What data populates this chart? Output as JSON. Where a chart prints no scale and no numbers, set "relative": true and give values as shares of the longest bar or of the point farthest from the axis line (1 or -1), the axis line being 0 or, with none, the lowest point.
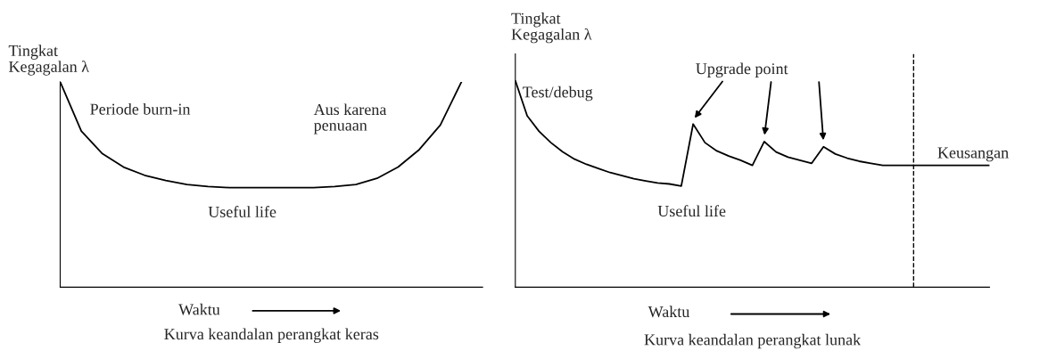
{
  "chart_data": [
    {
      "type": "line",
      "relative": true,
      "title": "Kurva keandalan perangkat keras",
      "xlabel": "Waktu",
      "ylabel": "Tingkat\nKegagalan λ",
      "categories": [
        null,
        null,
        null,
        null,
        null,
        null,
        null,
        null,
        null,
        null,
        null,
        null,
        null,
        null,
        null,
        null,
        null,
        null,
        null,
        null,
        null
      ],
      "series": [
        {
          "color": "#000000",
          "values": [
            1.0,
            0.76,
            0.65,
            0.585,
            0.545,
            0.52,
            0.5,
            0.49,
            0.485,
            0.485,
            0.485,
            0.485,
            0.485,
            0.49,
            0.5,
            0.53,
            0.585,
            0.67,
            0.79,
            1.0,
            null
          ]
        }
      ],
      "annotations": [
        "Periode burn-in",
        "Aus karena\npenuaan",
        "Useful life"
      ]
    },
    {
      "type": "line",
      "relative": true,
      "title": "Kurva keandalan perangkat lunak",
      "xlabel": "Waktu",
      "ylabel": "Tingkat\nKegagalan λ",
      "categories": [
        null,
        null,
        null,
        null,
        null,
        null,
        null,
        null,
        null,
        null,
        null,
        null,
        null,
        null,
        null,
        null,
        null,
        null,
        null,
        null,
        null,
        null,
        null,
        null,
        null,
        null,
        null,
        null,
        null,
        null,
        null,
        null,
        null,
        null,
        null,
        null,
        null,
        null,
        null,
        null,
        null
      ],
      "series": [
        {
          "color": "#000000",
          "values": [
            1.0,
            0.83,
            0.755,
            0.7,
            0.655,
            0.62,
            0.595,
            0.575,
            0.555,
            0.54,
            0.525,
            0.515,
            0.505,
            0.5,
            0.49,
            0.79,
            0.7,
            0.66,
            0.635,
            0.615,
            0.59,
            0.705,
            0.655,
            0.63,
            0.615,
            0.6,
            0.68,
            0.645,
            0.625,
            0.61,
            0.6,
            0.59,
            0.59,
            0.59,
            0.59,
            0.59,
            0.59,
            0.59,
            0.59,
            0.59,
            0.59
          ]
        }
      ],
      "annotations": [
        "Test/debug",
        "Upgrade point",
        "Useful life",
        "Keusangan"
      ]
    }
  ]
}
